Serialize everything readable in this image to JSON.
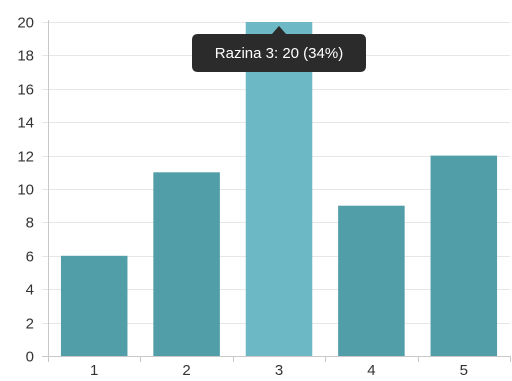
{
  "chart_data": {
    "type": "bar",
    "categories": [
      "1",
      "2",
      "3",
      "4",
      "5"
    ],
    "values": [
      6,
      11,
      20,
      9,
      12
    ],
    "ylim": [
      0,
      20
    ],
    "yticks": [
      0,
      2,
      4,
      6,
      8,
      10,
      12,
      14,
      16,
      18,
      20
    ],
    "grid": true,
    "legend": "none",
    "highlighted_index": 2
  },
  "tooltip": {
    "text": "Razina 3: 20 (34%)"
  },
  "colors": {
    "bar": "#529ea8",
    "bar_hover": "#6cb8c4",
    "grid": "#e6e6e6",
    "axis": "#c8c8c8",
    "tick_text": "#333333",
    "tooltip_bg": "#2b2b2b",
    "tooltip_text": "#ffffff"
  }
}
